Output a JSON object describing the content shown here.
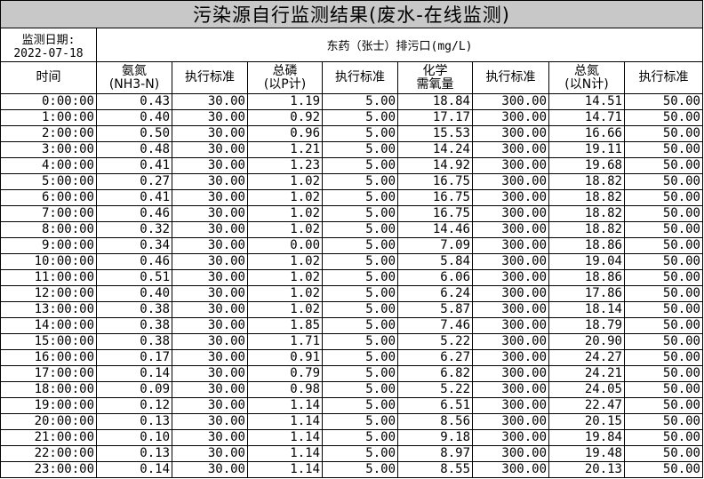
{
  "title": "污染源自行监测结果(废水-在线监测)",
  "date_label": "监测日期:",
  "date": "2022-07-18",
  "outlet": "东药（张士）排污口(mg/L)",
  "headers": [
    "时间",
    "氨氮\n(NH3-N)",
    "执行标准",
    "总磷\n(以P计)",
    "执行标准",
    "化学\n需氧量",
    "执行标准",
    "总氮\n(以N计)",
    "执行标准"
  ],
  "rows": [
    [
      "0:00:00",
      "0.43",
      "30.00",
      "1.19",
      "5.00",
      "18.84",
      "300.00",
      "14.51",
      "50.00"
    ],
    [
      "1:00:00",
      "0.40",
      "30.00",
      "0.92",
      "5.00",
      "17.17",
      "300.00",
      "14.71",
      "50.00"
    ],
    [
      "2:00:00",
      "0.50",
      "30.00",
      "0.96",
      "5.00",
      "15.53",
      "300.00",
      "16.66",
      "50.00"
    ],
    [
      "3:00:00",
      "0.48",
      "30.00",
      "1.21",
      "5.00",
      "14.24",
      "300.00",
      "19.11",
      "50.00"
    ],
    [
      "4:00:00",
      "0.41",
      "30.00",
      "1.23",
      "5.00",
      "14.92",
      "300.00",
      "19.68",
      "50.00"
    ],
    [
      "5:00:00",
      "0.27",
      "30.00",
      "1.02",
      "5.00",
      "16.75",
      "300.00",
      "18.82",
      "50.00"
    ],
    [
      "6:00:00",
      "0.41",
      "30.00",
      "1.02",
      "5.00",
      "16.75",
      "300.00",
      "18.82",
      "50.00"
    ],
    [
      "7:00:00",
      "0.46",
      "30.00",
      "1.02",
      "5.00",
      "16.75",
      "300.00",
      "18.82",
      "50.00"
    ],
    [
      "8:00:00",
      "0.32",
      "30.00",
      "1.02",
      "5.00",
      "14.46",
      "300.00",
      "18.82",
      "50.00"
    ],
    [
      "9:00:00",
      "0.34",
      "30.00",
      "0.00",
      "5.00",
      "7.09",
      "300.00",
      "18.86",
      "50.00"
    ],
    [
      "10:00:00",
      "0.46",
      "30.00",
      "1.02",
      "5.00",
      "5.84",
      "300.00",
      "19.04",
      "50.00"
    ],
    [
      "11:00:00",
      "0.51",
      "30.00",
      "1.02",
      "5.00",
      "6.06",
      "300.00",
      "18.86",
      "50.00"
    ],
    [
      "12:00:00",
      "0.40",
      "30.00",
      "1.02",
      "5.00",
      "6.24",
      "300.00",
      "17.86",
      "50.00"
    ],
    [
      "13:00:00",
      "0.38",
      "30.00",
      "1.02",
      "5.00",
      "5.87",
      "300.00",
      "18.14",
      "50.00"
    ],
    [
      "14:00:00",
      "0.38",
      "30.00",
      "1.85",
      "5.00",
      "7.46",
      "300.00",
      "18.79",
      "50.00"
    ],
    [
      "15:00:00",
      "0.38",
      "30.00",
      "1.71",
      "5.00",
      "5.22",
      "300.00",
      "20.90",
      "50.00"
    ],
    [
      "16:00:00",
      "0.17",
      "30.00",
      "0.91",
      "5.00",
      "6.27",
      "300.00",
      "24.27",
      "50.00"
    ],
    [
      "17:00:00",
      "0.14",
      "30.00",
      "0.79",
      "5.00",
      "6.82",
      "300.00",
      "24.21",
      "50.00"
    ],
    [
      "18:00:00",
      "0.09",
      "30.00",
      "0.98",
      "5.00",
      "5.22",
      "300.00",
      "24.05",
      "50.00"
    ],
    [
      "19:00:00",
      "0.12",
      "30.00",
      "1.14",
      "5.00",
      "6.51",
      "300.00",
      "22.47",
      "50.00"
    ],
    [
      "20:00:00",
      "0.13",
      "30.00",
      "1.14",
      "5.00",
      "8.56",
      "300.00",
      "20.15",
      "50.00"
    ],
    [
      "21:00:00",
      "0.10",
      "30.00",
      "1.14",
      "5.00",
      "9.18",
      "300.00",
      "19.84",
      "50.00"
    ],
    [
      "22:00:00",
      "0.13",
      "30.00",
      "1.14",
      "5.00",
      "8.97",
      "300.00",
      "19.48",
      "50.00"
    ],
    [
      "23:00:00",
      "0.14",
      "30.00",
      "1.14",
      "5.00",
      "8.55",
      "300.00",
      "20.13",
      "50.00"
    ]
  ]
}
